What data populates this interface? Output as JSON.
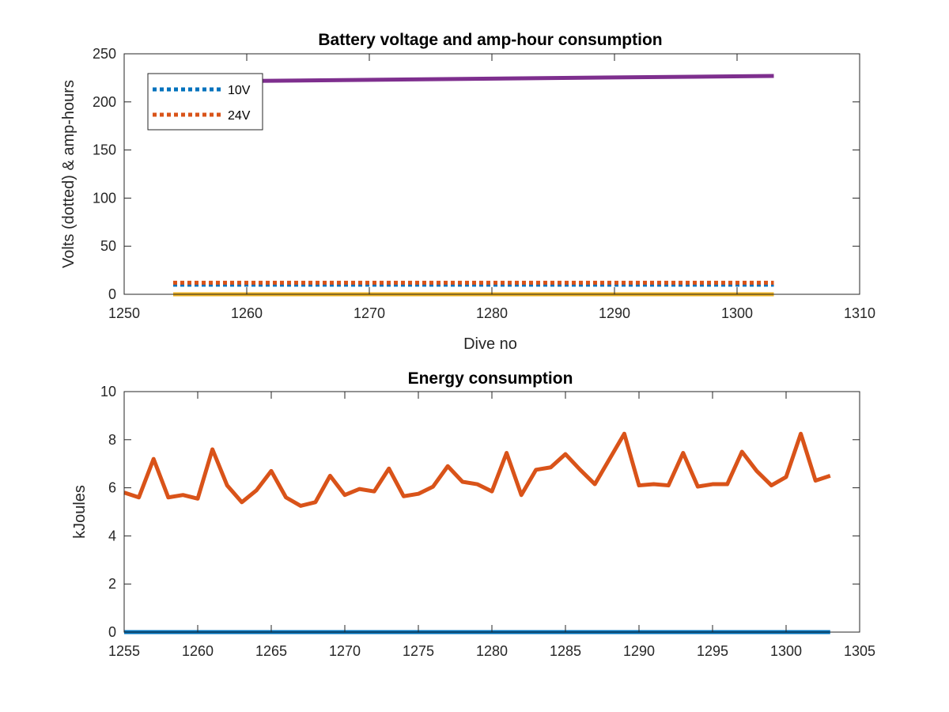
{
  "chart_data": [
    {
      "type": "line",
      "title": "Battery voltage and amp-hour consumption",
      "xlabel": "Dive no",
      "ylabel": "Volts (dotted) & amp-hours",
      "xlim": [
        1250,
        1310
      ],
      "ylim": [
        0,
        250
      ],
      "xticks": [
        1250,
        1260,
        1270,
        1280,
        1290,
        1300,
        1310
      ],
      "yticks": [
        0,
        50,
        100,
        150,
        200,
        250
      ],
      "grid": false,
      "legend_position": "top-left",
      "series": [
        {
          "name": "10V",
          "color": "#0072BD",
          "style": "dotted",
          "x": [
            1254,
            1303
          ],
          "y": [
            10,
            10
          ]
        },
        {
          "name": "24V",
          "color": "#D95319",
          "style": "dotted",
          "x": [
            1254,
            1303
          ],
          "y": [
            12,
            12
          ]
        },
        {
          "color": "#EDB120",
          "style": "solid",
          "x": [
            1254,
            1303
          ],
          "y": [
            0,
            0
          ]
        },
        {
          "color": "#7E2F8E",
          "style": "solid",
          "x": [
            1254,
            1303
          ],
          "y": [
            221,
            227
          ]
        }
      ]
    },
    {
      "type": "line",
      "title": "Energy consumption",
      "xlabel": "",
      "ylabel": "kJoules",
      "xlim": [
        1255,
        1305
      ],
      "ylim": [
        0,
        10
      ],
      "xticks": [
        1255,
        1260,
        1265,
        1270,
        1275,
        1280,
        1285,
        1290,
        1295,
        1300,
        1305
      ],
      "yticks": [
        0,
        2,
        4,
        6,
        8,
        10
      ],
      "grid": false,
      "series": [
        {
          "color": "#0072BD",
          "style": "solid",
          "x": [
            1255,
            1303
          ],
          "y": [
            0,
            0
          ]
        },
        {
          "color": "#D95319",
          "style": "solid",
          "x": [
            1255,
            1256,
            1257,
            1258,
            1259,
            1260,
            1261,
            1262,
            1263,
            1264,
            1265,
            1266,
            1267,
            1268,
            1269,
            1270,
            1271,
            1272,
            1273,
            1274,
            1275,
            1276,
            1277,
            1278,
            1279,
            1280,
            1281,
            1282,
            1283,
            1284,
            1285,
            1286,
            1287,
            1288,
            1289,
            1290,
            1291,
            1292,
            1293,
            1294,
            1295,
            1296,
            1297,
            1298,
            1299,
            1300,
            1301,
            1302,
            1303
          ],
          "y": [
            5.8,
            5.6,
            7.2,
            5.6,
            5.7,
            5.55,
            7.6,
            6.1,
            5.4,
            5.9,
            6.7,
            5.6,
            5.25,
            5.4,
            6.5,
            5.7,
            5.95,
            5.85,
            6.8,
            5.65,
            5.75,
            6.05,
            6.9,
            6.25,
            6.15,
            5.85,
            7.45,
            5.7,
            6.75,
            6.85,
            7.4,
            6.75,
            6.15,
            7.2,
            8.25,
            6.1,
            6.15,
            6.1,
            7.45,
            6.05,
            6.15,
            6.15,
            7.5,
            6.7,
            6.1,
            6.45,
            8.25,
            6.3,
            6.5
          ]
        }
      ]
    }
  ]
}
